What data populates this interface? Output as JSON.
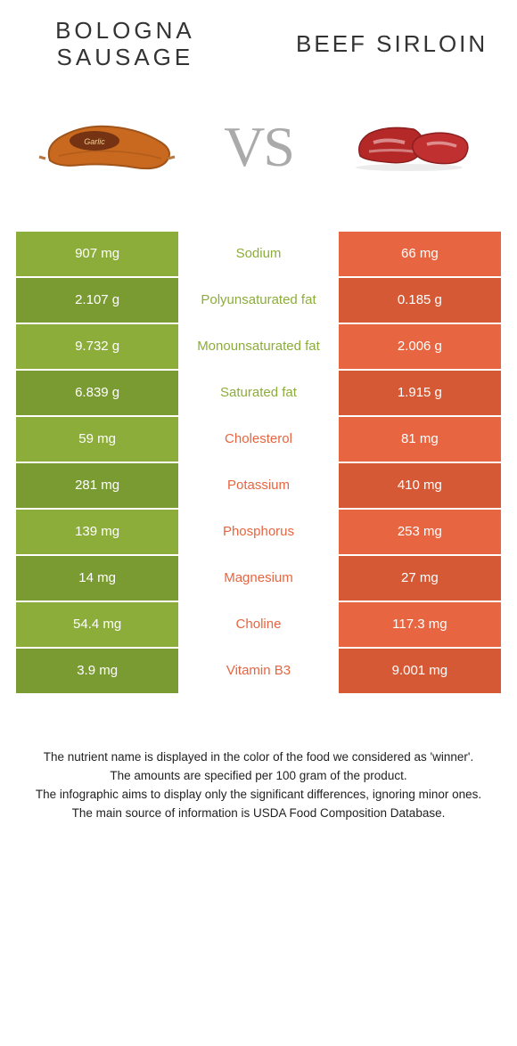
{
  "left": {
    "title": "BOLOGNA SAUSAGE",
    "color": "#8cad3a",
    "color_dark": "#7a9a32"
  },
  "right": {
    "title": "BEEF SIRLOIN",
    "color": "#e76540",
    "color_dark": "#d65935"
  },
  "vs": "VS",
  "rows": [
    {
      "left": "907 mg",
      "mid": "Sodium",
      "right": "66 mg",
      "winner": "left"
    },
    {
      "left": "2.107 g",
      "mid": "Polyunsaturated fat",
      "right": "0.185 g",
      "winner": "left"
    },
    {
      "left": "9.732 g",
      "mid": "Monounsaturated fat",
      "right": "2.006 g",
      "winner": "left"
    },
    {
      "left": "6.839 g",
      "mid": "Saturated fat",
      "right": "1.915 g",
      "winner": "left"
    },
    {
      "left": "59 mg",
      "mid": "Cholesterol",
      "right": "81 mg",
      "winner": "right"
    },
    {
      "left": "281 mg",
      "mid": "Potassium",
      "right": "410 mg",
      "winner": "right"
    },
    {
      "left": "139 mg",
      "mid": "Phosphorus",
      "right": "253 mg",
      "winner": "right"
    },
    {
      "left": "14 mg",
      "mid": "Magnesium",
      "right": "27 mg",
      "winner": "right"
    },
    {
      "left": "54.4 mg",
      "mid": "Choline",
      "right": "117.3 mg",
      "winner": "right"
    },
    {
      "left": "3.9 mg",
      "mid": "Vitamin B3",
      "right": "9.001 mg",
      "winner": "right"
    }
  ],
  "footer": [
    "The nutrient name is displayed in the color of the food we considered as 'winner'.",
    "The amounts are specified per 100 gram of the product.",
    "The infographic aims to display only the significant differences, ignoring minor ones.",
    "The main source of information is USDA Food Composition Database."
  ]
}
